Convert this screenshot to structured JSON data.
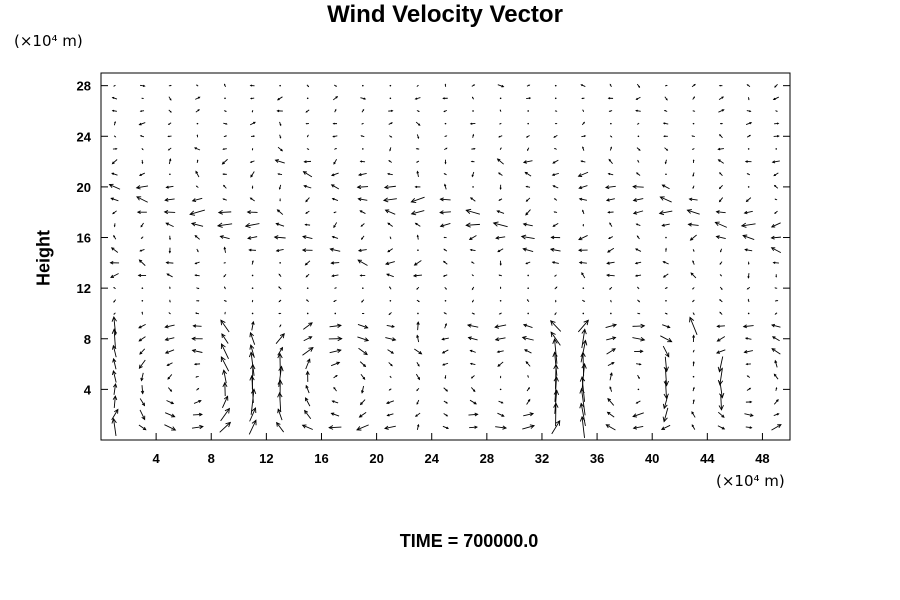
{
  "chart_data": {
    "type": "vector_field",
    "title": "Wind Velocity Vector",
    "ylabel": "Height",
    "x_unit": "(×10⁴ m)",
    "y_unit": "(×10⁴ m)",
    "annotation": "TIME = 700000.0",
    "xlim": [
      0,
      50
    ],
    "ylim": [
      0,
      29
    ],
    "x_ticks": [
      4,
      8,
      12,
      16,
      20,
      24,
      28,
      32,
      36,
      40,
      44,
      48
    ],
    "y_ticks": [
      4,
      8,
      12,
      16,
      20,
      24,
      28
    ],
    "grid": false,
    "legend": "none",
    "grid_spacing": {
      "dx": 2,
      "dy": 1
    },
    "upper_flow_band": [
      13,
      22
    ],
    "cells": [
      {
        "x_center": 6.5,
        "direction": "counterclockwise",
        "strength": 1.0
      },
      {
        "x_center": 17.5,
        "direction": "clockwise",
        "strength": 1.1
      },
      {
        "x_center": 30.0,
        "direction": "counterclockwise",
        "strength": 1.0
      },
      {
        "x_center": 38.5,
        "direction": "clockwise",
        "strength": 1.1
      },
      {
        "x_center": 47.0,
        "direction": "counterclockwise",
        "strength": 0.8
      }
    ],
    "updrafts_x": [
      1,
      10,
      22,
      26,
      34,
      43
    ]
  }
}
